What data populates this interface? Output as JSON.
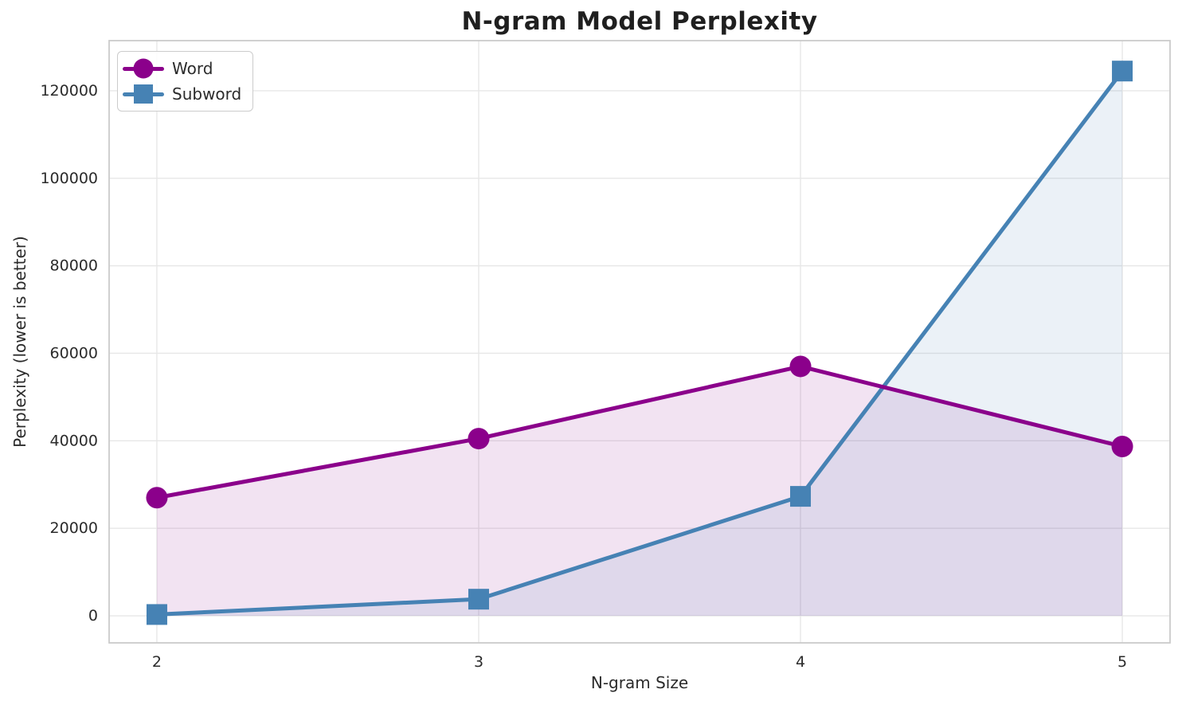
{
  "chart_data": {
    "type": "line",
    "title": "N-gram Model Perplexity",
    "xlabel": "N-gram Size",
    "ylabel": "Perplexity (lower is better)",
    "x": [
      2,
      3,
      4,
      5
    ],
    "series": [
      {
        "name": "Word",
        "marker": "circle",
        "color": "#8B008B",
        "values": [
          27000,
          40500,
          57000,
          38700
        ]
      },
      {
        "name": "Subword",
        "marker": "square",
        "color": "#4682B4",
        "values": [
          300,
          3800,
          27300,
          124500
        ]
      }
    ],
    "fill_alpha": 0.11,
    "fill_to": 0,
    "xticks": [
      "2",
      "3",
      "4",
      "5"
    ],
    "xtick_values": [
      2,
      3,
      4,
      5
    ],
    "yticks": [
      "0",
      "20000",
      "40000",
      "60000",
      "80000",
      "100000",
      "120000"
    ],
    "ytick_values": [
      0,
      20000,
      40000,
      60000,
      80000,
      100000,
      120000
    ],
    "xlim": [
      1.8516,
      5.1484
    ],
    "ylim": [
      -6182,
      131455
    ],
    "grid": true,
    "legend_position": "upper left",
    "colors": {
      "grid": "#E7E7E7",
      "spine": "#CBCBCB",
      "text": "#2B2B2B",
      "title": "#1F1F1F",
      "legend_border": "#CCCCCC"
    }
  }
}
